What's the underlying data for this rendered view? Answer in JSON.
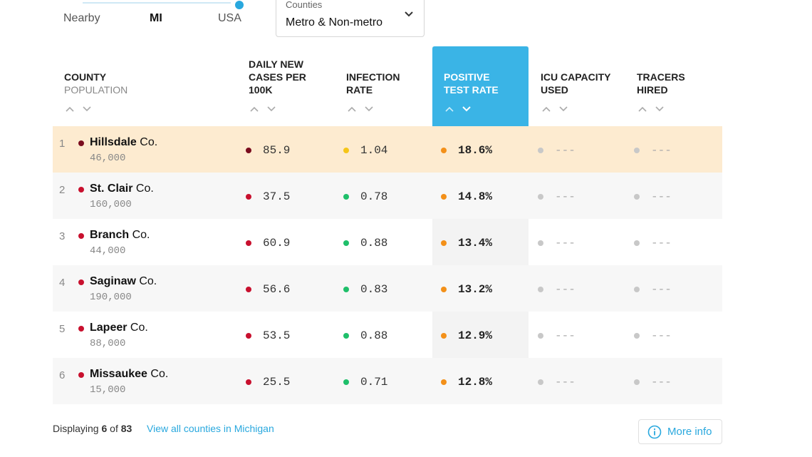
{
  "scope": {
    "options": [
      "Nearby",
      "MI",
      "USA"
    ],
    "selected": "MI"
  },
  "filter": {
    "label": "Counties",
    "value": "Metro & Non-metro"
  },
  "columns": {
    "county": "COUNTY",
    "population": "POPULATION",
    "daily_new_cases": [
      "DAILY NEW",
      "CASES PER",
      "100K"
    ],
    "infection_rate": [
      "INFECTION",
      "RATE"
    ],
    "positive_test_rate": [
      "POSITIVE",
      "TEST RATE"
    ],
    "icu_capacity": [
      "ICU CAPACITY",
      "USED"
    ],
    "tracers": [
      "TRACERS",
      "HIRED"
    ]
  },
  "colors": {
    "dark_red": "#7a0c1e",
    "red": "#c8102e",
    "yellow": "#f5c518",
    "green": "#1fbf6a",
    "orange": "#f39019",
    "grey": "#c8c8c8",
    "accent": "#3ab4e6"
  },
  "rows": [
    {
      "rank": "1",
      "name": "Hillsdale",
      "suffix": " Co.",
      "population": "46,000",
      "county_color": "dark_red",
      "cases": "85.9",
      "cases_color": "dark_red",
      "infection": "1.04",
      "infection_color": "yellow",
      "positive": "18.6%",
      "icu": "---",
      "tracers": "---",
      "highlighted": true
    },
    {
      "rank": "2",
      "name": "St. Clair",
      "suffix": " Co.",
      "population": "160,000",
      "county_color": "red",
      "cases": "37.5",
      "cases_color": "red",
      "infection": "0.78",
      "infection_color": "green",
      "positive": "14.8%",
      "icu": "---",
      "tracers": "---",
      "highlighted": false
    },
    {
      "rank": "3",
      "name": "Branch",
      "suffix": " Co.",
      "population": "44,000",
      "county_color": "red",
      "cases": "60.9",
      "cases_color": "red",
      "infection": "0.88",
      "infection_color": "green",
      "positive": "13.4%",
      "icu": "---",
      "tracers": "---",
      "highlighted": false
    },
    {
      "rank": "4",
      "name": "Saginaw",
      "suffix": " Co.",
      "population": "190,000",
      "county_color": "red",
      "cases": "56.6",
      "cases_color": "red",
      "infection": "0.83",
      "infection_color": "green",
      "positive": "13.2%",
      "icu": "---",
      "tracers": "---",
      "highlighted": false
    },
    {
      "rank": "5",
      "name": "Lapeer",
      "suffix": " Co.",
      "population": "88,000",
      "county_color": "red",
      "cases": "53.5",
      "cases_color": "red",
      "infection": "0.88",
      "infection_color": "green",
      "positive": "12.9%",
      "icu": "---",
      "tracers": "---",
      "highlighted": false
    },
    {
      "rank": "6",
      "name": "Missaukee",
      "suffix": " Co.",
      "population": "15,000",
      "county_color": "red",
      "cases": "25.5",
      "cases_color": "red",
      "infection": "0.71",
      "infection_color": "green",
      "positive": "12.8%",
      "icu": "---",
      "tracers": "---",
      "highlighted": false
    }
  ],
  "footer": {
    "displaying_prefix": "Displaying ",
    "shown": "6",
    "of": " of ",
    "total": "83",
    "view_all": "View all counties in Michigan",
    "more_info": "More info"
  }
}
